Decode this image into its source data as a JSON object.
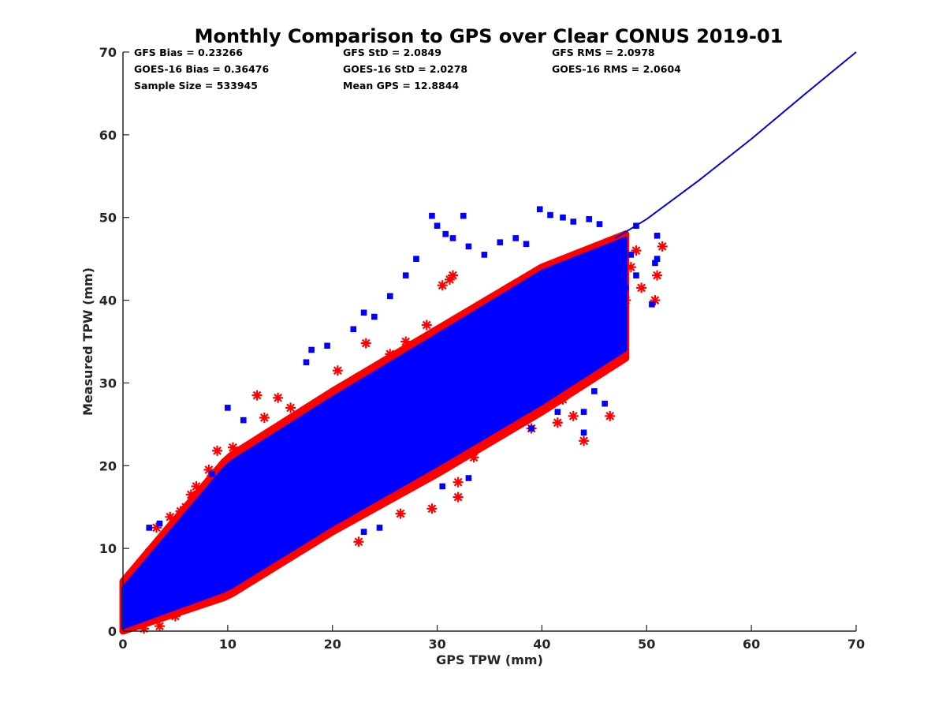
{
  "chart_data": {
    "type": "scatter",
    "title": "Monthly Comparison to GPS over Clear CONUS 2019-01",
    "xlabel": "GPS TPW (mm)",
    "ylabel": "Measured TPW (mm)",
    "xlim": [
      0,
      70
    ],
    "ylim": [
      0,
      70
    ],
    "xticks": [
      "0",
      "10",
      "20",
      "30",
      "40",
      "50",
      "60",
      "70"
    ],
    "yticks": [
      "0",
      "10",
      "20",
      "30",
      "40",
      "50",
      "60",
      "70"
    ],
    "grid": false,
    "stats": [
      [
        "GFS Bias = 0.23266",
        "GFS StD = 2.0849",
        "GFS RMS = 2.0978"
      ],
      [
        "GOES-16 Bias = 0.36476",
        "GOES-16 StD = 2.0278",
        "GOES-16 RMS = 2.0604"
      ],
      [
        "Sample Size = 533945",
        "Mean GPS = 12.8844",
        ""
      ]
    ],
    "series": [
      {
        "marker": "star",
        "color": "#ff0000",
        "band": {
          "x": [
            0,
            10,
            20,
            30,
            40,
            48
          ],
          "low": [
            0,
            4.2,
            12,
            19,
            26.5,
            33
          ],
          "high": [
            6,
            21,
            29,
            36.5,
            44,
            48
          ]
        },
        "outliers": [
          [
            8.2,
            19.5
          ],
          [
            8.5,
            18.8
          ],
          [
            9.0,
            21.8
          ],
          [
            10.5,
            22.2
          ],
          [
            7.0,
            17.5
          ],
          [
            6.5,
            16.5
          ],
          [
            4.5,
            13.8
          ],
          [
            3.2,
            12.5
          ],
          [
            12.8,
            28.5
          ],
          [
            13.5,
            25.8
          ],
          [
            14.8,
            28.2
          ],
          [
            16.0,
            27.0
          ],
          [
            31.2,
            42.5
          ],
          [
            31.5,
            43.0
          ],
          [
            30.5,
            41.8
          ],
          [
            23.2,
            34.8
          ],
          [
            44.0,
            23.0
          ],
          [
            46.5,
            26.0
          ],
          [
            47.5,
            33.0
          ],
          [
            47.5,
            35.0
          ],
          [
            50.8,
            40.0
          ],
          [
            51.0,
            43.0
          ],
          [
            51.5,
            46.5
          ],
          [
            49.5,
            41.5
          ],
          [
            48.5,
            44.0
          ],
          [
            49.0,
            46.0
          ],
          [
            43.0,
            26.0
          ],
          [
            41.5,
            25.2
          ],
          [
            39.0,
            24.5
          ],
          [
            37.5,
            25.0
          ],
          [
            34.5,
            24.0
          ],
          [
            32.0,
            18.0
          ],
          [
            33.5,
            21.0
          ],
          [
            36.5,
            24.5
          ],
          [
            32.0,
            16.2
          ],
          [
            29.5,
            14.8
          ],
          [
            26.5,
            14.2
          ],
          [
            22.5,
            10.8
          ],
          [
            21.5,
            13.5
          ],
          [
            19.0,
            12.0
          ],
          [
            17.0,
            10.5
          ],
          [
            15.5,
            9.0
          ],
          [
            14.0,
            8.0
          ],
          [
            12.0,
            6.8
          ],
          [
            10.0,
            5.5
          ],
          [
            8.5,
            4.2
          ],
          [
            6.5,
            3.0
          ],
          [
            5.0,
            1.8
          ],
          [
            3.5,
            0.6
          ],
          [
            2.0,
            0.3
          ],
          [
            0.3,
            4.8
          ],
          [
            0.2,
            2.5
          ],
          [
            1.5,
            7.0
          ],
          [
            2.5,
            9.5
          ],
          [
            44.2,
            34.0
          ],
          [
            43.5,
            31.5
          ],
          [
            44.0,
            30.0
          ],
          [
            42.0,
            28.0
          ],
          [
            45.0,
            37.0
          ],
          [
            46.0,
            38.5
          ],
          [
            48.0,
            40.0
          ],
          [
            47.0,
            42.0
          ],
          [
            6.0,
            15.0
          ],
          [
            5.5,
            14.5
          ],
          [
            11.0,
            21.5
          ],
          [
            18.5,
            26.0
          ],
          [
            20.5,
            31.5
          ],
          [
            25.5,
            33.5
          ],
          [
            27.0,
            35.0
          ],
          [
            29.0,
            37.0
          ]
        ]
      },
      {
        "marker": "square",
        "color": "#0000ff",
        "band": {
          "x": [
            0,
            10,
            20,
            30,
            40,
            48
          ],
          "low": [
            0.4,
            5.0,
            12.8,
            20.0,
            27.5,
            34.0
          ],
          "high": [
            5.2,
            20.2,
            28.2,
            35.8,
            43.5,
            47.5
          ]
        },
        "outliers": [
          [
            32.5,
            50.2
          ],
          [
            39.8,
            51.0
          ],
          [
            40.8,
            50.3
          ],
          [
            42.0,
            50.0
          ],
          [
            29.5,
            50.2
          ],
          [
            30.0,
            49.0
          ],
          [
            43.0,
            49.5
          ],
          [
            44.5,
            49.8
          ],
          [
            45.5,
            49.2
          ],
          [
            30.8,
            48.0
          ],
          [
            31.5,
            47.5
          ],
          [
            33.0,
            46.5
          ],
          [
            34.5,
            45.5
          ],
          [
            36.0,
            47.0
          ],
          [
            37.5,
            47.5
          ],
          [
            38.5,
            46.8
          ],
          [
            28.0,
            45.0
          ],
          [
            27.0,
            43.0
          ],
          [
            25.5,
            40.5
          ],
          [
            24.0,
            38.0
          ],
          [
            23.0,
            38.5
          ],
          [
            22.0,
            36.5
          ],
          [
            19.5,
            34.5
          ],
          [
            18.0,
            34.0
          ],
          [
            17.5,
            32.5
          ],
          [
            10.0,
            27.0
          ],
          [
            11.5,
            25.5
          ],
          [
            2.5,
            12.5
          ],
          [
            3.5,
            13.0
          ],
          [
            8.5,
            19.0
          ],
          [
            44.0,
            24.0
          ],
          [
            44.0,
            26.5
          ],
          [
            46.0,
            27.5
          ],
          [
            47.5,
            35.8
          ],
          [
            47.5,
            34.5
          ],
          [
            50.5,
            39.5
          ],
          [
            50.8,
            44.5
          ],
          [
            51.0,
            45.0
          ],
          [
            51.0,
            47.8
          ],
          [
            49.0,
            49.0
          ],
          [
            47.8,
            47.0
          ],
          [
            33.0,
            18.5
          ],
          [
            30.5,
            17.5
          ],
          [
            24.5,
            12.5
          ],
          [
            23.0,
            12.0
          ],
          [
            16.5,
            11.0
          ],
          [
            13.0,
            8.5
          ],
          [
            10.0,
            11.0
          ],
          [
            41.5,
            26.5
          ],
          [
            39.0,
            24.5
          ],
          [
            37.0,
            25.5
          ],
          [
            35.0,
            24.5
          ],
          [
            45.0,
            29.0
          ],
          [
            43.0,
            31.0
          ],
          [
            44.5,
            33.0
          ],
          [
            46.0,
            36.0
          ],
          [
            47.0,
            38.0
          ],
          [
            48.0,
            41.5
          ],
          [
            49.0,
            43.0
          ],
          [
            48.5,
            45.5
          ],
          [
            12.0,
            16.5
          ],
          [
            15.5,
            19.0
          ],
          [
            21.5,
            24.0
          ],
          [
            26.0,
            28.5
          ],
          [
            33.5,
            36.0
          ],
          [
            38.0,
            37.5
          ],
          [
            9.5,
            15.5
          ],
          [
            6.5,
            10.0
          ],
          [
            4.0,
            6.0
          ],
          [
            2.0,
            3.0
          ],
          [
            1.0,
            1.5
          ],
          [
            0.5,
            3.5
          ]
        ]
      }
    ],
    "line": {
      "color": "#0000dd",
      "x": [
        47,
        50,
        55,
        60,
        65,
        70
      ],
      "y": [
        47.5,
        49.8,
        54.5,
        59.5,
        64.8,
        70
      ]
    }
  }
}
